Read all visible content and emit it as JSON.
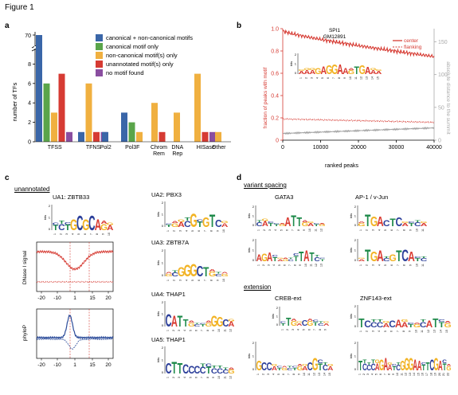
{
  "figure_title": "Figure 1",
  "panels": {
    "a": "a",
    "b": "b",
    "c": "c",
    "d": "d"
  },
  "colors": {
    "blue": "#3a66a8",
    "green": "#5aa54a",
    "orange": "#f0b040",
    "red": "#d63b33",
    "purple": "#8a4ea0",
    "logo_A": "#d93a31",
    "logo_C": "#2c3f9a",
    "logo_G": "#f2b324",
    "logo_T": "#1e8a4a"
  },
  "chart_data": [
    {
      "type": "bar",
      "ylabel": "number of TFs",
      "ylim": [
        0,
        70
      ],
      "y_ticks": [
        "0",
        "2",
        "4",
        "6",
        "8",
        "70"
      ],
      "categories": [
        "TFSS",
        "TFNS",
        "Pol2",
        "Pol3F",
        "Chrom Rem",
        "DNA Rep",
        "HISase",
        "Other"
      ],
      "series": [
        {
          "name": "canonical + non-canonical motifs",
          "color": "#3a66a8",
          "values": [
            70,
            1,
            1,
            3,
            0,
            0,
            0,
            0
          ]
        },
        {
          "name": "canonical motif only",
          "color": "#5aa54a",
          "values": [
            6,
            0,
            0,
            2,
            0,
            0,
            0,
            0
          ]
        },
        {
          "name": "non-canonical motif(s) only",
          "color": "#f0b040",
          "values": [
            3,
            6,
            0,
            1,
            4,
            3,
            7,
            1
          ]
        },
        {
          "name": "unannotated motif(s) only",
          "color": "#d63b33",
          "values": [
            7,
            1,
            0,
            0,
            1,
            0,
            1,
            0
          ]
        },
        {
          "name": "no motif found",
          "color": "#8a4ea0",
          "values": [
            1,
            1,
            0,
            0,
            0,
            0,
            1,
            0
          ]
        }
      ]
    },
    {
      "type": "line",
      "title": "SPI1",
      "subtitle": "GM12891",
      "xlabel": "ranked peaks",
      "ylabel": "fraction of peaks with motif",
      "ylabel_right": "absolute distance to the summit",
      "x_ticks": [
        "0",
        "10000",
        "20000",
        "30000",
        "40000"
      ],
      "y_ticks": [
        "0",
        "0.2",
        "0.4",
        "0.6",
        "0.8",
        "1.0"
      ],
      "y_ticks_right": [
        "0",
        "50",
        "100",
        "150"
      ],
      "xlim": [
        0,
        40000
      ],
      "ylim": [
        0,
        1.0
      ],
      "series": [
        {
          "name": "center",
          "color": "#d63b33",
          "x": [
            0,
            5000,
            10000,
            15000,
            20000,
            25000,
            30000,
            35000,
            40000
          ],
          "y": [
            0.98,
            0.93,
            0.88,
            0.85,
            0.83,
            0.81,
            0.79,
            0.77,
            0.75
          ]
        },
        {
          "name": "flanking",
          "color": "#d63b33",
          "x": [
            0,
            10000,
            20000,
            30000,
            40000
          ],
          "y": [
            0.19,
            0.18,
            0.17,
            0.17,
            0.16
          ]
        },
        {
          "name": "distance",
          "color": "#9a9a9a",
          "x": [
            0,
            10000,
            20000,
            30000,
            40000
          ],
          "y": [
            0.06,
            0.08,
            0.09,
            0.1,
            0.11
          ]
        }
      ]
    }
  ],
  "panel_b_logo_letters": "AAAGAGGAAGTGAAA",
  "panel_c": {
    "section_label": "unannotated",
    "ua1_title": "UA1: ZBTB33",
    "ua2_title": "UA2: PBX3",
    "ua3_title": "UA3: ZBTB7A",
    "ua4_title": "UA4: THAP1",
    "ua5_title": "UA5: THAP1",
    "dnase_ylabel": "DNase I signal",
    "phylop_ylabel": "phyloP",
    "x_ticks": [
      "-20",
      "-10",
      "1",
      "15",
      "20"
    ],
    "bits": "bits"
  },
  "panel_d": {
    "section1": "variant spacing",
    "section2": "extension",
    "gata3": "GATA3",
    "ap1": "AP-1 / v-Jun",
    "creb": "CREB-ext",
    "znf143": "ZNF143-ext",
    "bits": "bits"
  }
}
